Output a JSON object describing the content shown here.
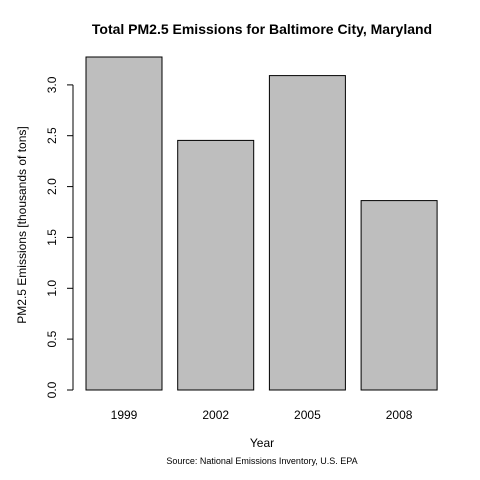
{
  "chart_data": {
    "type": "bar",
    "title": "Total PM2.5 Emissions for Baltimore City, Maryland",
    "xlabel": "Year",
    "ylabel": "PM2.5 Emissions [thousands of tons]",
    "caption": "Source: National Emissions Inventory, U.S. EPA",
    "categories": [
      "1999",
      "2002",
      "2005",
      "2008"
    ],
    "values": [
      3.274,
      2.454,
      3.091,
      1.862
    ],
    "ylim": [
      0,
      3.274
    ],
    "yticks": [
      0,
      0.5,
      1,
      1.5,
      2,
      2.5,
      3
    ],
    "ytick_labels": [
      "0.0",
      "0.5",
      "1.0",
      "1.5",
      "2.0",
      "2.5",
      "3.0"
    ],
    "bar_color": "#bebebe",
    "bar_border_color": "#000000",
    "grid": false,
    "legend": "none"
  }
}
